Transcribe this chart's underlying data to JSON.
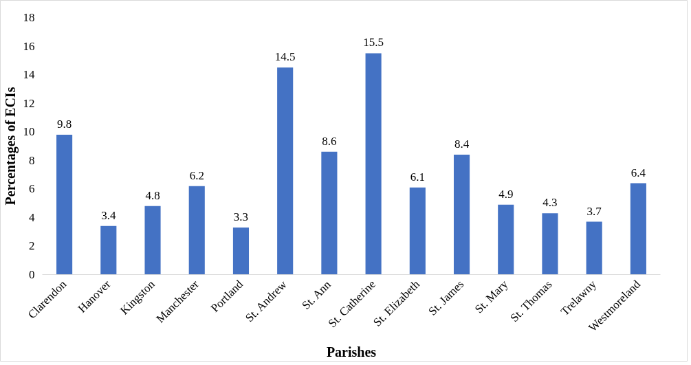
{
  "chart_data": {
    "type": "bar",
    "xlabel": "Parishes",
    "ylabel": "Percentages of ECIs",
    "categories": [
      "Clarendon",
      "Hanover",
      "Kingston",
      "Manchester",
      "Portland",
      "St. Andrew",
      "St. Ann",
      "St. Catherine",
      "St. Elizabeth",
      "St. James",
      "St. Mary",
      "St. Thomas",
      "Trelawny",
      "Westmoreland"
    ],
    "values": [
      9.8,
      3.4,
      4.8,
      6.2,
      3.3,
      14.5,
      8.6,
      15.5,
      6.1,
      8.4,
      4.9,
      4.3,
      3.7,
      6.4
    ],
    "color": "#4472c4",
    "ylim": [
      0,
      18
    ],
    "yticks": [
      0,
      2,
      4,
      6,
      8,
      10,
      12,
      14,
      16,
      18
    ],
    "grid": false,
    "data_labels": true
  }
}
